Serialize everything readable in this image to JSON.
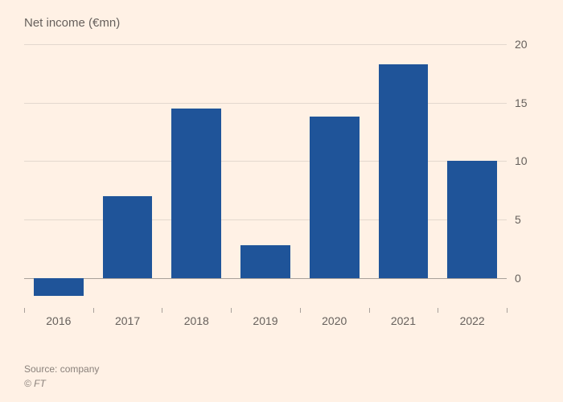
{
  "chart": {
    "type": "bar",
    "subtitle": "Net income (€mn)",
    "categories": [
      "2016",
      "2017",
      "2018",
      "2019",
      "2020",
      "2021",
      "2022"
    ],
    "values": [
      -1.5,
      7.0,
      14.5,
      2.8,
      13.8,
      18.3,
      10.0
    ],
    "bar_color": "#1f5499",
    "background_color": "#fff1e5",
    "grid_color": "#e3d8ce",
    "zero_line_color": "#a8a09a",
    "label_color": "#66605c",
    "yticks": [
      0,
      5,
      10,
      15,
      20
    ],
    "ymin": -2,
    "ymax": 20,
    "bar_width_ratio": 0.72,
    "subtitle_fontsize": 15,
    "tick_fontsize": 14
  },
  "footer": {
    "source": "Source: company",
    "copyright": "© FT"
  }
}
